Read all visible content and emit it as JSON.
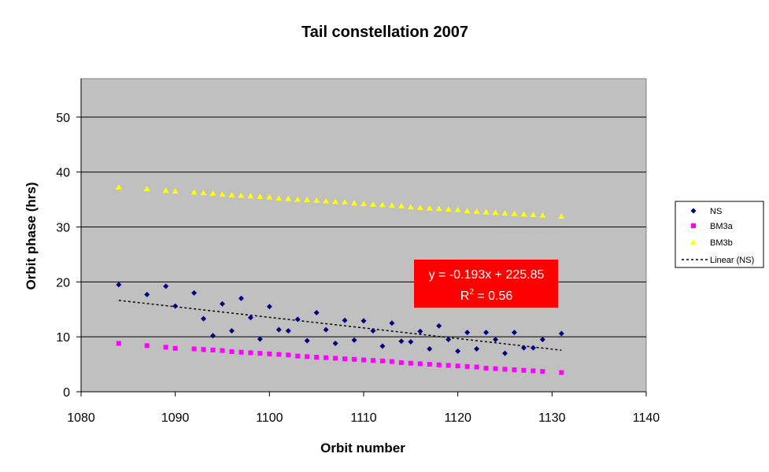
{
  "chart_data": {
    "type": "scatter",
    "title": "Tail constellation 2007",
    "xlabel": "Orbit number",
    "ylabel": "Orbit phase (hrs)",
    "xlim": [
      1080,
      1140
    ],
    "ylim": [
      0,
      57
    ],
    "x_ticks": [
      1080,
      1090,
      1100,
      1110,
      1120,
      1130,
      1140
    ],
    "y_ticks": [
      0,
      10,
      20,
      30,
      40,
      50
    ],
    "grid": "horizontal",
    "plot_background": "#c0c0c0",
    "legend_position": "right",
    "series": [
      {
        "name": "NS",
        "marker": "diamond",
        "color": "#000080",
        "points": [
          [
            1084,
            19.5
          ],
          [
            1087,
            17.7
          ],
          [
            1089,
            19.2
          ],
          [
            1090,
            15.6
          ],
          [
            1092,
            18.0
          ],
          [
            1093,
            13.3
          ],
          [
            1094,
            10.2
          ],
          [
            1095,
            16.0
          ],
          [
            1096,
            11.1
          ],
          [
            1097,
            17.0
          ],
          [
            1098,
            13.5
          ],
          [
            1099,
            9.6
          ],
          [
            1100,
            15.5
          ],
          [
            1101,
            11.3
          ],
          [
            1102,
            11.1
          ],
          [
            1103,
            13.2
          ],
          [
            1104,
            9.3
          ],
          [
            1105,
            14.4
          ],
          [
            1106,
            11.3
          ],
          [
            1107,
            8.8
          ],
          [
            1108,
            13.0
          ],
          [
            1109,
            9.4
          ],
          [
            1110,
            12.9
          ],
          [
            1111,
            11.1
          ],
          [
            1112,
            8.3
          ],
          [
            1113,
            12.5
          ],
          [
            1114,
            9.2
          ],
          [
            1115,
            9.1
          ],
          [
            1116,
            11.0
          ],
          [
            1117,
            7.8
          ],
          [
            1118,
            12.0
          ],
          [
            1119,
            9.5
          ],
          [
            1120,
            7.4
          ],
          [
            1121,
            10.8
          ],
          [
            1122,
            7.8
          ],
          [
            1123,
            10.8
          ],
          [
            1124,
            9.5
          ],
          [
            1125,
            7.0
          ],
          [
            1126,
            10.8
          ],
          [
            1127,
            8.0
          ],
          [
            1128,
            8.0
          ],
          [
            1129,
            9.5
          ],
          [
            1131,
            10.6
          ]
        ]
      },
      {
        "name": "BM3a",
        "marker": "square",
        "color": "#ff00ff",
        "points": [
          [
            1084,
            8.8
          ],
          [
            1087,
            8.4
          ],
          [
            1089,
            8.1
          ],
          [
            1090,
            7.9
          ],
          [
            1092,
            7.8
          ],
          [
            1093,
            7.7
          ],
          [
            1094,
            7.6
          ],
          [
            1095,
            7.5
          ],
          [
            1096,
            7.3
          ],
          [
            1097,
            7.2
          ],
          [
            1098,
            7.1
          ],
          [
            1099,
            7.0
          ],
          [
            1100,
            6.9
          ],
          [
            1101,
            6.8
          ],
          [
            1102,
            6.7
          ],
          [
            1103,
            6.5
          ],
          [
            1104,
            6.4
          ],
          [
            1105,
            6.3
          ],
          [
            1106,
            6.2
          ],
          [
            1107,
            6.1
          ],
          [
            1108,
            6.0
          ],
          [
            1109,
            5.9
          ],
          [
            1110,
            5.8
          ],
          [
            1111,
            5.7
          ],
          [
            1112,
            5.6
          ],
          [
            1113,
            5.5
          ],
          [
            1114,
            5.3
          ],
          [
            1115,
            5.2
          ],
          [
            1116,
            5.1
          ],
          [
            1117,
            5.0
          ],
          [
            1118,
            4.9
          ],
          [
            1119,
            4.8
          ],
          [
            1120,
            4.7
          ],
          [
            1121,
            4.6
          ],
          [
            1122,
            4.5
          ],
          [
            1123,
            4.3
          ],
          [
            1124,
            4.2
          ],
          [
            1125,
            4.1
          ],
          [
            1126,
            4.0
          ],
          [
            1127,
            3.9
          ],
          [
            1128,
            3.8
          ],
          [
            1129,
            3.7
          ],
          [
            1131,
            3.5
          ]
        ]
      },
      {
        "name": "BM3b",
        "marker": "triangle",
        "color": "#ffff00",
        "points": [
          [
            1084,
            37.2
          ],
          [
            1087,
            36.9
          ],
          [
            1089,
            36.6
          ],
          [
            1090,
            36.5
          ],
          [
            1092,
            36.3
          ],
          [
            1093,
            36.2
          ],
          [
            1094,
            36.1
          ],
          [
            1095,
            35.9
          ],
          [
            1096,
            35.8
          ],
          [
            1097,
            35.7
          ],
          [
            1098,
            35.6
          ],
          [
            1099,
            35.5
          ],
          [
            1100,
            35.4
          ],
          [
            1101,
            35.2
          ],
          [
            1102,
            35.1
          ],
          [
            1103,
            35.0
          ],
          [
            1104,
            34.9
          ],
          [
            1105,
            34.8
          ],
          [
            1106,
            34.7
          ],
          [
            1107,
            34.6
          ],
          [
            1108,
            34.5
          ],
          [
            1109,
            34.3
          ],
          [
            1110,
            34.2
          ],
          [
            1111,
            34.1
          ],
          [
            1112,
            34.0
          ],
          [
            1113,
            33.9
          ],
          [
            1114,
            33.8
          ],
          [
            1115,
            33.6
          ],
          [
            1116,
            33.5
          ],
          [
            1117,
            33.4
          ],
          [
            1118,
            33.3
          ],
          [
            1119,
            33.2
          ],
          [
            1120,
            33.1
          ],
          [
            1121,
            32.9
          ],
          [
            1122,
            32.8
          ],
          [
            1123,
            32.7
          ],
          [
            1124,
            32.6
          ],
          [
            1125,
            32.5
          ],
          [
            1126,
            32.4
          ],
          [
            1127,
            32.3
          ],
          [
            1128,
            32.2
          ],
          [
            1129,
            32.1
          ],
          [
            1131,
            31.9
          ]
        ]
      }
    ],
    "trendline": {
      "name": "Linear (NS)",
      "series": "NS",
      "slope": -0.193,
      "intercept": 225.85,
      "x_range": [
        1084,
        1131
      ],
      "style": "dotted",
      "color": "#000000"
    },
    "annotation": {
      "equation": "y = -0.193x + 225.85",
      "r2_prefix": "R",
      "r2_sup": "2",
      "r2_value": " = 0.56",
      "background": "#ff0000",
      "text_color": "#ffffff"
    }
  }
}
